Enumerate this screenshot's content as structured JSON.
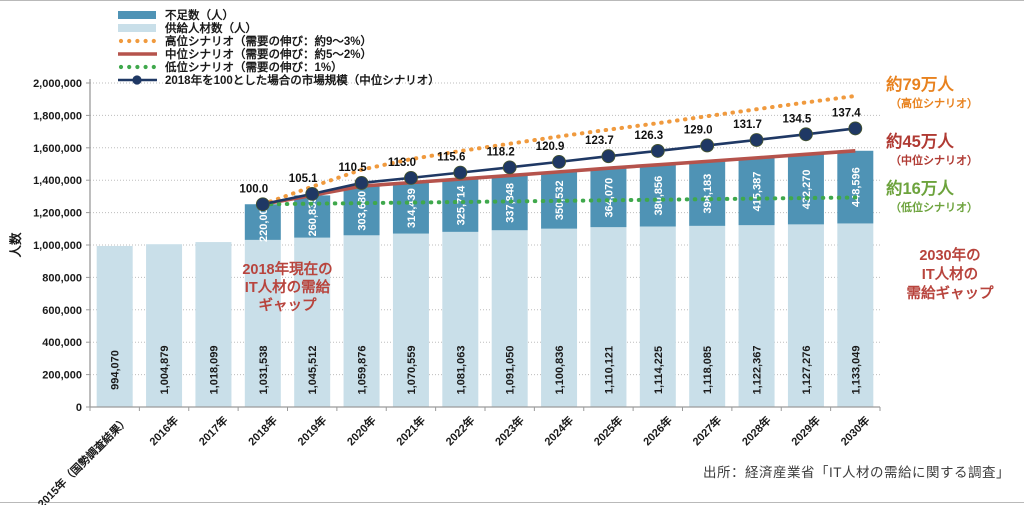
{
  "page": {
    "source": "出所：経済産業省「IT人材の需給に関する調査」"
  },
  "annotations": {
    "gap2018": {
      "line1": "2018年現在の",
      "line2": "IT人材の需給",
      "line3": "ギャップ",
      "color": "#b8443d"
    },
    "gap2030": {
      "line1": "2030年の",
      "line2": "IT人材の",
      "line3": "需給ギャップ",
      "color": "#b8443d"
    },
    "high": {
      "value": "約79万人",
      "label": "（高位シナリオ）",
      "color": "#e8821f"
    },
    "mid": {
      "value": "約45万人",
      "label": "（中位シナリオ）",
      "color": "#b03a33"
    },
    "low": {
      "value": "約16万人",
      "label": "（低位シナリオ）",
      "color": "#6da33d"
    }
  },
  "chart_data": {
    "type": "bar",
    "subtype": "stacked-bars-with-lines",
    "title": "",
    "xlabel": "",
    "ylabel": "人数",
    "ylim": [
      0,
      2000000
    ],
    "ytick_step": 200000,
    "grid": true,
    "legend_position": "top-left",
    "categories": [
      "2015年（国勢調査結果）",
      "2016年",
      "2017年",
      "2018年",
      "2019年",
      "2020年",
      "2021年",
      "2022年",
      "2023年",
      "2024年",
      "2025年",
      "2026年",
      "2027年",
      "2028年",
      "2029年",
      "2030年"
    ],
    "bar_series": [
      {
        "name": "供給人材数（人）",
        "color": "#c9dfe9",
        "label_color": "#1a1a1a",
        "values": [
          994070,
          1004879,
          1018099,
          1031538,
          1045512,
          1059876,
          1070559,
          1081063,
          1091050,
          1100836,
          1110121,
          1114225,
          1118085,
          1122367,
          1127276,
          1133049
        ]
      },
      {
        "name": "不足数（人）",
        "color": "#4f93b5",
        "label_color": "#ffffff",
        "stack_on": 0,
        "values": [
          0,
          0,
          0,
          220000,
          260835,
          303680,
          314439,
          325714,
          337848,
          350532,
          364070,
          380856,
          398183,
          415387,
          432270,
          448596
        ]
      }
    ],
    "line_series": [
      {
        "name": "高位シナリオ（需要の伸び：約9～3%）",
        "color": "#f09a3e",
        "style": "dotted",
        "start_index": 3,
        "estimated": true,
        "values": [
          1251538,
          1360000,
          1465000,
          1530000,
          1580000,
          1625000,
          1670000,
          1712000,
          1752000,
          1795000,
          1838000,
          1880000,
          1920000
        ]
      },
      {
        "name": "中位シナリオ（需要の伸び：約5～2%）",
        "color": "#b5534c",
        "style": "solid",
        "start_index": 3,
        "values": [
          1251538,
          1306347,
          1363556,
          1384998,
          1406777,
          1428898,
          1451368,
          1474191,
          1495081,
          1516268,
          1537754,
          1559546,
          1581645
        ]
      },
      {
        "name": "低位シナリオ（需要の伸び：1%）",
        "color": "#3fa84c",
        "style": "dotted",
        "start_index": 3,
        "estimated": true,
        "values": [
          1251538,
          1255000,
          1258500,
          1262000,
          1265500,
          1269000,
          1272500,
          1276000,
          1279500,
          1283000,
          1286500,
          1290000,
          1293049
        ]
      },
      {
        "name": "2018年を100とした場合の市場規模（中位シナリオ）",
        "color": "#1f3864",
        "style": "marker",
        "start_index": 3,
        "values": [
          1251538,
          1315366,
          1382949,
          1414238,
          1446778,
          1479318,
          1513109,
          1548152,
          1580693,
          1614484,
          1648276,
          1683319,
          1719613
        ],
        "point_labels": [
          "100.0",
          "105.1",
          "110.5",
          "113.0",
          "115.6",
          "118.2",
          "120.9",
          "123.7",
          "126.3",
          "129.0",
          "131.7",
          "134.5",
          "137.4"
        ]
      }
    ]
  }
}
